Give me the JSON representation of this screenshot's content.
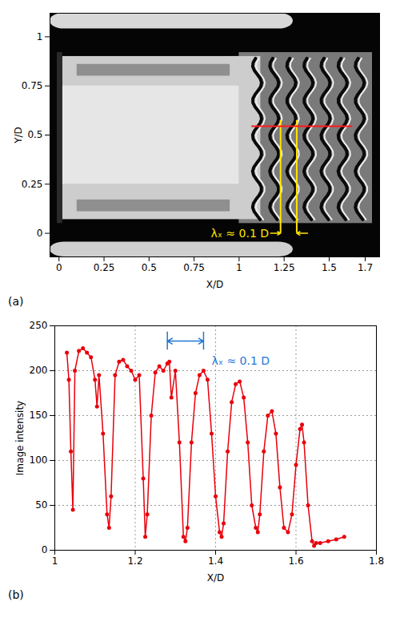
{
  "chart_data": [
    {
      "type": "image",
      "panel": "(a)",
      "xlabel": "X/D",
      "ylabel": "Y/D",
      "xlim": [
        -0.05,
        1.78
      ],
      "ylim": [
        -0.12,
        1.12
      ],
      "xticks": [
        0,
        0.25,
        0.5,
        0.75,
        1,
        1.25,
        1.5,
        1.7
      ],
      "yticks": [
        0,
        0.25,
        0.5,
        0.75,
        1
      ],
      "profile_line": {
        "x": [
          1.07,
          1.63
        ],
        "y": 0.545
      },
      "annotation": {
        "text": "λₓ ≈ 0.1 D",
        "x": [
          1.23,
          1.32
        ],
        "y": 0.0
      }
    },
    {
      "type": "line",
      "panel": "(b)",
      "xlabel": "X/D",
      "ylabel": "Image intensity",
      "xlim": [
        1,
        1.8
      ],
      "ylim": [
        0,
        250
      ],
      "xticks": [
        1,
        1.2,
        1.4,
        1.6,
        1.8
      ],
      "yticks": [
        0,
        50,
        100,
        150,
        200,
        250
      ],
      "grid": true,
      "color": "#e8000b",
      "marker": "dot",
      "x": [
        1.03,
        1.035,
        1.04,
        1.045,
        1.05,
        1.06,
        1.07,
        1.08,
        1.09,
        1.1,
        1.105,
        1.11,
        1.12,
        1.13,
        1.135,
        1.14,
        1.15,
        1.16,
        1.17,
        1.18,
        1.19,
        1.2,
        1.21,
        1.22,
        1.225,
        1.23,
        1.24,
        1.25,
        1.26,
        1.27,
        1.28,
        1.285,
        1.29,
        1.3,
        1.31,
        1.32,
        1.325,
        1.33,
        1.34,
        1.35,
        1.36,
        1.37,
        1.38,
        1.39,
        1.4,
        1.41,
        1.415,
        1.42,
        1.43,
        1.44,
        1.45,
        1.46,
        1.47,
        1.48,
        1.49,
        1.5,
        1.505,
        1.51,
        1.52,
        1.53,
        1.54,
        1.55,
        1.56,
        1.57,
        1.58,
        1.59,
        1.6,
        1.61,
        1.615,
        1.62,
        1.63,
        1.64,
        1.645,
        1.65,
        1.66,
        1.68,
        1.7,
        1.72
      ],
      "values": [
        220,
        190,
        110,
        45,
        200,
        222,
        225,
        220,
        215,
        190,
        160,
        195,
        130,
        40,
        25,
        60,
        195,
        210,
        212,
        205,
        200,
        190,
        195,
        80,
        15,
        40,
        150,
        198,
        205,
        200,
        208,
        210,
        170,
        200,
        120,
        15,
        10,
        25,
        120,
        175,
        195,
        200,
        190,
        130,
        60,
        20,
        15,
        30,
        110,
        165,
        185,
        188,
        170,
        120,
        50,
        25,
        20,
        40,
        110,
        150,
        155,
        130,
        70,
        25,
        20,
        40,
        95,
        135,
        140,
        120,
        50,
        10,
        5,
        8,
        8,
        10,
        12,
        15
      ],
      "annotation": {
        "text": "λₓ ≈ 0.1 D",
        "x": [
          1.28,
          1.37
        ],
        "y": 233
      }
    }
  ]
}
